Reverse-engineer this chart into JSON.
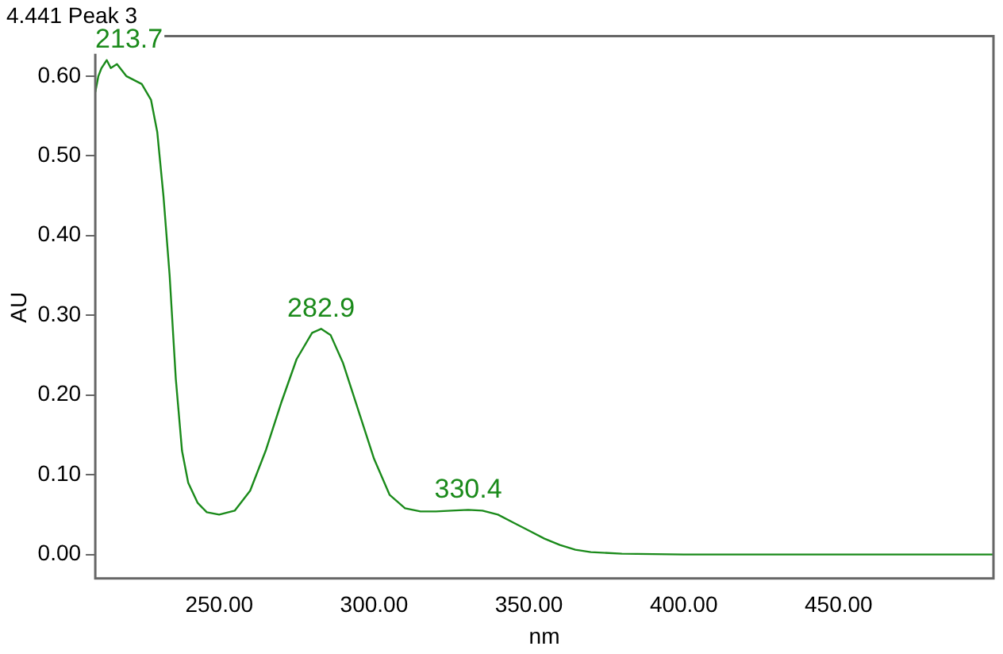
{
  "chart_data": {
    "type": "line",
    "title": "4.441 Peak 3",
    "xlabel": "nm",
    "ylabel": "AU",
    "x": [
      210,
      211,
      212,
      213.7,
      215,
      217,
      220,
      225,
      228,
      230,
      232,
      234,
      236,
      238,
      240,
      243,
      246,
      250,
      255,
      260,
      265,
      270,
      275,
      280,
      282.9,
      286,
      290,
      295,
      300,
      305,
      310,
      315,
      320,
      325,
      330.4,
      335,
      340,
      345,
      350,
      355,
      360,
      365,
      370,
      380,
      400,
      450,
      500
    ],
    "series": [
      {
        "color": "#1a8a1a",
        "values": [
          0.58,
          0.6,
          0.61,
          0.62,
          0.61,
          0.615,
          0.6,
          0.59,
          0.57,
          0.53,
          0.45,
          0.35,
          0.22,
          0.13,
          0.09,
          0.065,
          0.053,
          0.05,
          0.055,
          0.08,
          0.13,
          0.19,
          0.245,
          0.278,
          0.283,
          0.275,
          0.24,
          0.18,
          0.12,
          0.075,
          0.058,
          0.054,
          0.054,
          0.055,
          0.056,
          0.055,
          0.05,
          0.04,
          0.03,
          0.02,
          0.012,
          0.006,
          0.003,
          0.001,
          0,
          0,
          0
        ]
      }
    ],
    "annotations": [
      {
        "text": "213.7",
        "x": 213.7,
        "y": 0.62
      },
      {
        "text": "282.9",
        "x": 282.9,
        "y": 0.283
      },
      {
        "text": "330.4",
        "x": 330.4,
        "y": 0.056
      }
    ],
    "xlim": [
      210,
      500
    ],
    "ylim": [
      -0.03,
      0.65
    ],
    "xticks": [
      {
        "value": 250,
        "label": "250.00"
      },
      {
        "value": 300,
        "label": "300.00"
      },
      {
        "value": 350,
        "label": "350.00"
      },
      {
        "value": 400,
        "label": "400.00"
      },
      {
        "value": 450,
        "label": "450.00"
      }
    ],
    "yticks": [
      {
        "value": 0,
        "label": "0.00"
      },
      {
        "value": 0.1,
        "label": "0.10"
      },
      {
        "value": 0.2,
        "label": "0.20"
      },
      {
        "value": 0.3,
        "label": "0.30"
      },
      {
        "value": 0.4,
        "label": "0.40"
      },
      {
        "value": 0.5,
        "label": "0.50"
      },
      {
        "value": 0.6,
        "label": "0.60"
      }
    ],
    "grid": false,
    "legend": false,
    "marker": "none",
    "line_style": "solid"
  }
}
